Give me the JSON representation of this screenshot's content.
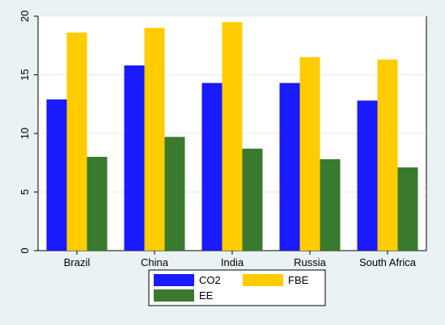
{
  "chart_data": {
    "type": "bar",
    "title": "",
    "xlabel": "",
    "ylabel": "",
    "categories": [
      "Brazil",
      "China",
      "India",
      "Russia",
      "South Africa"
    ],
    "series": [
      {
        "name": "CO2",
        "color": "#1a1aff",
        "values": [
          12.9,
          15.8,
          14.3,
          14.3,
          12.8
        ]
      },
      {
        "name": "FBE",
        "color": "#ffcc00",
        "values": [
          18.6,
          19.0,
          19.5,
          16.5,
          16.3
        ]
      },
      {
        "name": "EE",
        "color": "#3a7a2f",
        "values": [
          8.0,
          9.7,
          8.7,
          7.8,
          7.1
        ]
      }
    ],
    "ylim": [
      0,
      20
    ],
    "yticks": [
      0,
      5,
      10,
      15,
      20
    ],
    "ytick_labels": [
      "0",
      "5",
      "10",
      "15",
      "20"
    ],
    "grid": "horizontal",
    "legend_position": "bottom"
  }
}
